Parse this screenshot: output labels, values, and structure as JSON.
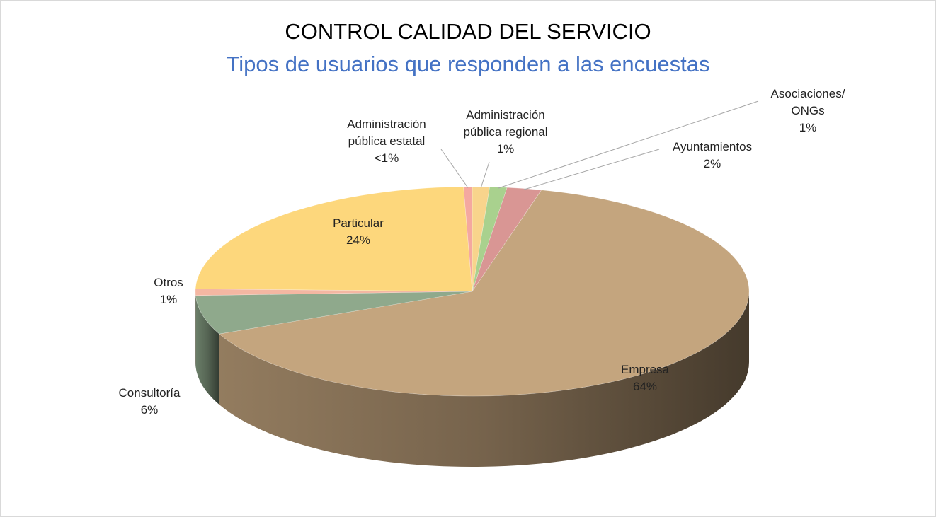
{
  "chart_data": {
    "type": "pie",
    "title": "CONTROL CALIDAD DEL SERVICIO",
    "subtitle": "Tipos de usuarios que responden a las encuestas",
    "categories": [
      "Administración pública regional",
      "Asociaciones/ ONGs",
      "Ayuntamientos",
      "Empresa",
      "Consultoría",
      "Otros",
      "Particular",
      "Administración pública estatal"
    ],
    "values": [
      1,
      1,
      2,
      64,
      6,
      1,
      24,
      0.5
    ],
    "value_labels": [
      "1%",
      "1%",
      "2%",
      "64%",
      "6%",
      "1%",
      "24%",
      "<1%"
    ],
    "colors": [
      "#f8d48c",
      "#a9d18e",
      "#d99694",
      "#c4a57e",
      "#8fa98c",
      "#f4b7a2",
      "#fdd77c",
      "#f4a8a0"
    ]
  }
}
